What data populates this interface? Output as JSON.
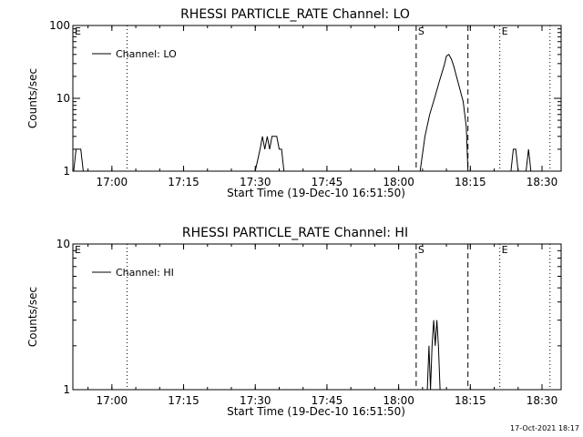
{
  "footer": {
    "timestamp": "17-Oct-2021 18:17"
  },
  "chart_data": [
    {
      "type": "line",
      "title": "RHESSI PARTICLE_RATE Channel: LO",
      "xlabel": "Start Time (19-Dec-10 16:51:50)",
      "ylabel": "Counts/sec",
      "yscale": "log",
      "xlim": [
        "16:51:50",
        "18:34:00"
      ],
      "ylim": [
        1,
        100
      ],
      "xticks": [
        "17:00",
        "17:15",
        "17:30",
        "17:45",
        "18:00",
        "18:15",
        "18:30"
      ],
      "yticks": [
        "1",
        "10",
        "100"
      ],
      "legend": {
        "placement": "top-left",
        "label": "Channel: LO"
      },
      "series": [
        {
          "name": "Channel: LO",
          "x": [
            "16:52:00",
            "16:52:30",
            "16:53:00",
            "16:53:30",
            "16:54:00",
            "16:54:30",
            "17:30:00",
            "17:31:00",
            "17:31:30",
            "17:32:00",
            "17:32:30",
            "17:33:00",
            "17:33:30",
            "17:34:00",
            "17:34:30",
            "17:35:00",
            "17:35:30",
            "17:36:00",
            "17:36:30",
            "18:03:40",
            "18:04:30",
            "18:05:30",
            "18:06:30",
            "18:07:30",
            "18:08:30",
            "18:09:30",
            "18:10:00",
            "18:10:30",
            "18:11:00",
            "18:11:30",
            "18:12:30",
            "18:13:30",
            "18:14:10",
            "18:14:30",
            "18:23:30",
            "18:24:00",
            "18:24:30",
            "18:25:00",
            "18:26:40",
            "18:27:10",
            "18:27:40"
          ],
          "values": [
            1,
            2,
            2,
            2,
            1,
            1,
            1,
            2,
            3,
            2,
            3,
            2,
            3,
            3,
            3,
            2,
            2,
            1,
            1,
            1,
            1,
            3,
            6,
            10,
            17,
            28,
            38,
            40,
            35,
            28,
            16,
            9,
            4,
            1,
            1,
            2,
            2,
            1,
            1,
            2,
            1
          ]
        }
      ],
      "vlines": [
        {
          "label": "E",
          "time": "16:51:50",
          "style": "dotted"
        },
        {
          "label": "",
          "time": "17:03:10",
          "style": "dotted"
        },
        {
          "label": "S",
          "time": "18:03:40",
          "style": "dashed"
        },
        {
          "label": "",
          "time": "18:14:30",
          "style": "dashed"
        },
        {
          "label": "E",
          "time": "18:21:10",
          "style": "dotted"
        },
        {
          "label": "",
          "time": "18:31:40",
          "style": "dotted"
        }
      ]
    },
    {
      "type": "line",
      "title": "RHESSI PARTICLE_RATE Channel: HI",
      "xlabel": "Start Time (19-Dec-10 16:51:50)",
      "ylabel": "Counts/sec",
      "yscale": "log",
      "xlim": [
        "16:51:50",
        "18:34:00"
      ],
      "ylim": [
        1,
        10
      ],
      "xticks": [
        "17:00",
        "17:15",
        "17:30",
        "17:45",
        "18:00",
        "18:15",
        "18:30"
      ],
      "yticks": [
        "1",
        "10"
      ],
      "legend": {
        "placement": "top-left",
        "label": "Channel: HI"
      },
      "series": [
        {
          "name": "Channel: HI",
          "x": [
            "18:05:40",
            "18:06:00",
            "18:06:20",
            "18:06:40",
            "18:07:00",
            "18:07:20",
            "18:07:40",
            "18:08:00",
            "18:08:20",
            "18:08:40",
            "18:09:00",
            "18:09:20"
          ],
          "values": [
            1,
            1,
            2,
            1,
            2,
            3,
            2,
            3,
            2,
            1,
            1,
            1
          ]
        }
      ],
      "vlines": [
        {
          "label": "E",
          "time": "16:51:50",
          "style": "dotted"
        },
        {
          "label": "",
          "time": "17:03:10",
          "style": "dotted"
        },
        {
          "label": "S",
          "time": "18:03:40",
          "style": "dashed"
        },
        {
          "label": "",
          "time": "18:14:30",
          "style": "dashed"
        },
        {
          "label": "E",
          "time": "18:21:10",
          "style": "dotted"
        },
        {
          "label": "",
          "time": "18:31:40",
          "style": "dotted"
        }
      ]
    }
  ]
}
